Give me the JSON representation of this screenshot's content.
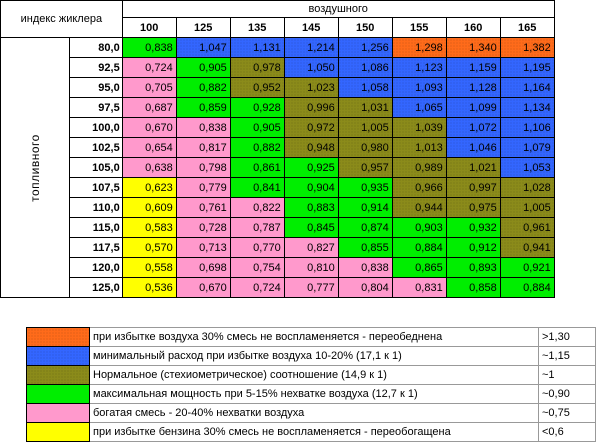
{
  "corner_label": "индекс жиклера",
  "air_title": "воздушного",
  "fuel_title": "топливного",
  "air_columns": [
    "100",
    "125",
    "135",
    "145",
    "150",
    "155",
    "160",
    "165"
  ],
  "colors": {
    "orange": "#ff6b1a",
    "blue": "#3366ff",
    "olive": "#8b8b1a",
    "green": "#00ee00",
    "pink": "#ff99cc",
    "yellow": "#ffff00"
  },
  "rows": [
    {
      "fuel": "80,0",
      "values": [
        "0,838",
        "1,047",
        "1,131",
        "1,214",
        "1,256",
        "1,298",
        "1,340",
        "1,382"
      ],
      "colors": [
        "green",
        "blue",
        "blue",
        "blue",
        "blue",
        "orange",
        "orange",
        "orange"
      ]
    },
    {
      "fuel": "92,5",
      "values": [
        "0,724",
        "0,905",
        "0,978",
        "1,050",
        "1,086",
        "1,123",
        "1,159",
        "1,195"
      ],
      "colors": [
        "pink",
        "green",
        "olive",
        "blue",
        "blue",
        "blue",
        "blue",
        "blue"
      ]
    },
    {
      "fuel": "95,0",
      "values": [
        "0,705",
        "0,882",
        "0,952",
        "1,023",
        "1,058",
        "1,093",
        "1,128",
        "1,164"
      ],
      "colors": [
        "pink",
        "green",
        "olive",
        "olive",
        "blue",
        "blue",
        "blue",
        "blue"
      ]
    },
    {
      "fuel": "97,5",
      "values": [
        "0,687",
        "0,859",
        "0,928",
        "0,996",
        "1,031",
        "1,065",
        "1,099",
        "1,134"
      ],
      "colors": [
        "pink",
        "green",
        "green",
        "olive",
        "olive",
        "blue",
        "blue",
        "blue"
      ]
    },
    {
      "fuel": "100,0",
      "values": [
        "0,670",
        "0,838",
        "0,905",
        "0,972",
        "1,005",
        "1,039",
        "1,072",
        "1,106"
      ],
      "colors": [
        "pink",
        "pink",
        "green",
        "olive",
        "olive",
        "olive",
        "blue",
        "blue"
      ]
    },
    {
      "fuel": "102,5",
      "values": [
        "0,654",
        "0,817",
        "0,882",
        "0,948",
        "0,980",
        "1,013",
        "1,046",
        "1,079"
      ],
      "colors": [
        "pink",
        "pink",
        "green",
        "olive",
        "olive",
        "olive",
        "blue",
        "blue"
      ]
    },
    {
      "fuel": "105,0",
      "values": [
        "0,638",
        "0,798",
        "0,861",
        "0,925",
        "0,957",
        "0,989",
        "1,021",
        "1,053"
      ],
      "colors": [
        "pink",
        "pink",
        "green",
        "green",
        "olive",
        "olive",
        "olive",
        "blue"
      ]
    },
    {
      "fuel": "107,5",
      "values": [
        "0,623",
        "0,779",
        "0,841",
        "0,904",
        "0,935",
        "0,966",
        "0,997",
        "1,028"
      ],
      "colors": [
        "yellow",
        "pink",
        "green",
        "green",
        "green",
        "olive",
        "olive",
        "olive"
      ]
    },
    {
      "fuel": "110,0",
      "values": [
        "0,609",
        "0,761",
        "0,822",
        "0,883",
        "0,914",
        "0,944",
        "0,975",
        "1,005"
      ],
      "colors": [
        "yellow",
        "pink",
        "pink",
        "green",
        "green",
        "olive",
        "olive",
        "olive"
      ]
    },
    {
      "fuel": "115,0",
      "values": [
        "0,583",
        "0,728",
        "0,787",
        "0,845",
        "0,874",
        "0,903",
        "0,932",
        "0,961"
      ],
      "colors": [
        "yellow",
        "pink",
        "pink",
        "green",
        "green",
        "green",
        "green",
        "olive"
      ]
    },
    {
      "fuel": "117,5",
      "values": [
        "0,570",
        "0,713",
        "0,770",
        "0,827",
        "0,855",
        "0,884",
        "0,912",
        "0,941"
      ],
      "colors": [
        "yellow",
        "pink",
        "pink",
        "pink",
        "green",
        "green",
        "green",
        "olive"
      ]
    },
    {
      "fuel": "120,0",
      "values": [
        "0,558",
        "0,698",
        "0,754",
        "0,810",
        "0,838",
        "0,865",
        "0,893",
        "0,921"
      ],
      "colors": [
        "yellow",
        "pink",
        "pink",
        "pink",
        "pink",
        "green",
        "green",
        "green"
      ]
    },
    {
      "fuel": "125,0",
      "values": [
        "0,536",
        "0,670",
        "0,724",
        "0,777",
        "0,804",
        "0,831",
        "0,858",
        "0,884"
      ],
      "colors": [
        "yellow",
        "pink",
        "pink",
        "pink",
        "pink",
        "pink",
        "green",
        "green"
      ]
    }
  ],
  "legend": [
    {
      "color": "orange",
      "text": "при избытке воздуха 30% смесь не воспламеняется - переобеднена",
      "ratio": ">1,30"
    },
    {
      "color": "blue",
      "text": "минимальный расход при избытке воздуха 10-20% (17,1 к 1)",
      "ratio": "~1,15"
    },
    {
      "color": "olive",
      "text": "Нормальное (стехиометрическое) соотношение (14,9 к 1)",
      "ratio": "~1"
    },
    {
      "color": "green",
      "text": "максимальная мощность при 5-15% нехватке воздуха (12,7 к 1)",
      "ratio": "~0,90"
    },
    {
      "color": "pink",
      "text": "богатая смесь - 20-40% нехватки воздуха",
      "ratio": "~0,75"
    },
    {
      "color": "yellow",
      "text": "при избытке бензина 30% смесь не воспламеняется - переобогащена",
      "ratio": "<0,6"
    }
  ]
}
